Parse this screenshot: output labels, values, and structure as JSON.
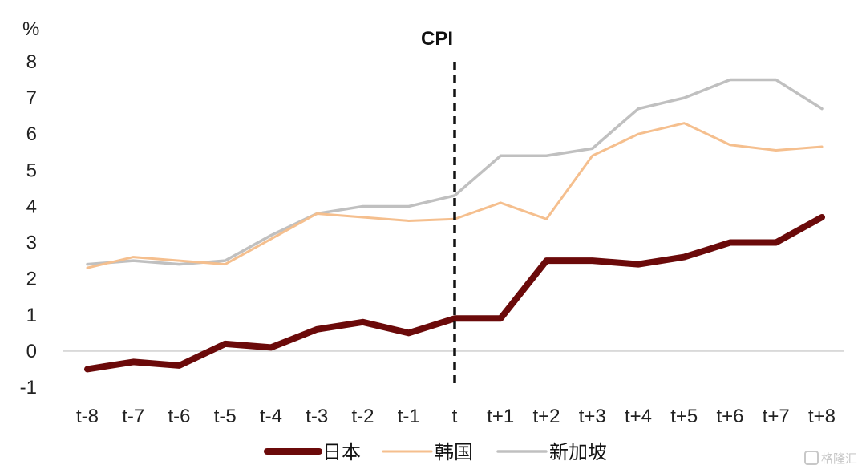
{
  "chart_data": {
    "type": "line",
    "unit": "%",
    "categories": [
      "t-8",
      "t-7",
      "t-6",
      "t-5",
      "t-4",
      "t-3",
      "t-2",
      "t-1",
      "t",
      "t+1",
      "t+2",
      "t+3",
      "t+4",
      "t+5",
      "t+6",
      "t+7",
      "t+8"
    ],
    "ylim": [
      -1,
      8
    ],
    "yticks": [
      -1,
      0,
      1,
      2,
      3,
      4,
      5,
      6,
      7,
      8
    ],
    "grid": false,
    "legend_position": "bottom",
    "annotation": {
      "label": "CPI",
      "at": "t",
      "style": "dashed-vertical"
    },
    "series": [
      {
        "name": "日本",
        "color": "#6b0a0a",
        "values": [
          -0.5,
          -0.3,
          -0.4,
          0.2,
          0.1,
          0.6,
          0.8,
          0.5,
          0.9,
          0.9,
          2.5,
          2.5,
          2.4,
          2.6,
          3.0,
          3.0,
          3.7
        ]
      },
      {
        "name": "韩国",
        "color": "#f5bf8e",
        "values": [
          2.3,
          2.6,
          2.5,
          2.4,
          3.1,
          3.8,
          3.7,
          3.6,
          3.65,
          4.1,
          3.65,
          5.4,
          6.0,
          6.3,
          5.7,
          5.55,
          5.65
        ]
      },
      {
        "name": "新加坡",
        "color": "#c0c0c0",
        "values": [
          2.4,
          2.5,
          2.4,
          2.5,
          3.2,
          3.8,
          4.0,
          4.0,
          4.3,
          5.4,
          5.4,
          5.6,
          6.7,
          7.0,
          7.5,
          7.5,
          6.7
        ]
      }
    ]
  },
  "watermark": "格隆汇"
}
